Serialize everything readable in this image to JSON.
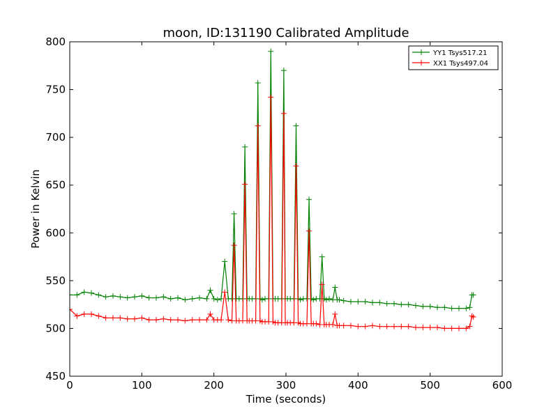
{
  "chart_data": {
    "type": "line",
    "title": "moon, ID:131190 Calibrated Amplitude",
    "xlabel": "Time (seconds)",
    "ylabel": "Power in Kelvin",
    "xlim": [
      0,
      600
    ],
    "ylim": [
      450,
      800
    ],
    "xticks": [
      0,
      100,
      200,
      300,
      400,
      500,
      600
    ],
    "yticks": [
      450,
      500,
      550,
      600,
      650,
      700,
      750,
      800
    ],
    "grid": false,
    "legend_position": "top-right",
    "marker": "+",
    "series": [
      {
        "name": "YY1 Tsys517.21",
        "color": "#008000",
        "x": [
          0,
          10,
          20,
          30,
          40,
          50,
          60,
          70,
          80,
          90,
          100,
          110,
          120,
          130,
          140,
          150,
          160,
          170,
          180,
          190,
          195,
          200,
          205,
          210,
          215,
          220,
          225,
          228,
          231,
          235,
          240,
          243,
          246,
          249,
          253,
          258,
          261,
          264,
          267,
          271,
          276,
          279,
          282,
          285,
          289,
          294,
          297,
          299,
          302,
          306,
          311,
          314,
          317,
          320,
          324,
          329,
          332,
          335,
          338,
          342,
          347,
          350,
          353,
          356,
          360,
          365,
          368,
          371,
          374,
          380,
          390,
          400,
          410,
          420,
          430,
          440,
          450,
          460,
          470,
          480,
          490,
          500,
          510,
          520,
          530,
          540,
          550,
          555,
          558,
          560
        ],
        "y": [
          535,
          535,
          538,
          537,
          535,
          533,
          534,
          533,
          532,
          533,
          534,
          532,
          532,
          533,
          531,
          532,
          530,
          531,
          532,
          531,
          540,
          531,
          530,
          531,
          570,
          531,
          531,
          620,
          531,
          531,
          531,
          690,
          531,
          531,
          531,
          531,
          757,
          531,
          530,
          531,
          531,
          790,
          531,
          531,
          531,
          531,
          770,
          531,
          531,
          531,
          531,
          712,
          531,
          530,
          531,
          531,
          635,
          531,
          530,
          531,
          531,
          575,
          531,
          530,
          531,
          530,
          543,
          530,
          530,
          529,
          528,
          528,
          528,
          527,
          527,
          526,
          526,
          525,
          525,
          524,
          523,
          523,
          522,
          522,
          521,
          521,
          521,
          522,
          535,
          535
        ]
      },
      {
        "name": "XX1 Tsys497.04",
        "color": "#ff0000",
        "x": [
          0,
          10,
          20,
          30,
          40,
          50,
          60,
          70,
          80,
          90,
          100,
          110,
          120,
          130,
          140,
          150,
          160,
          170,
          180,
          190,
          195,
          200,
          205,
          210,
          215,
          220,
          225,
          228,
          231,
          235,
          240,
          243,
          246,
          249,
          253,
          258,
          261,
          264,
          267,
          271,
          276,
          279,
          282,
          285,
          289,
          294,
          297,
          299,
          302,
          306,
          311,
          314,
          317,
          320,
          324,
          329,
          332,
          335,
          338,
          342,
          347,
          350,
          353,
          356,
          360,
          365,
          368,
          371,
          374,
          380,
          390,
          400,
          410,
          420,
          430,
          440,
          450,
          460,
          470,
          480,
          490,
          500,
          510,
          520,
          530,
          540,
          550,
          555,
          558,
          560
        ],
        "y": [
          520,
          513,
          515,
          515,
          513,
          511,
          511,
          511,
          510,
          510,
          511,
          509,
          509,
          510,
          509,
          509,
          508,
          509,
          509,
          509,
          515,
          509,
          509,
          509,
          538,
          509,
          508,
          587,
          508,
          508,
          508,
          651,
          508,
          508,
          508,
          508,
          712,
          508,
          507,
          507,
          507,
          742,
          507,
          506,
          506,
          506,
          725,
          506,
          506,
          506,
          506,
          670,
          506,
          505,
          505,
          505,
          602,
          505,
          505,
          505,
          504,
          546,
          504,
          504,
          504,
          504,
          515,
          503,
          503,
          503,
          503,
          502,
          502,
          503,
          502,
          502,
          502,
          502,
          502,
          501,
          501,
          501,
          501,
          500,
          500,
          500,
          500,
          502,
          513,
          512
        ]
      }
    ]
  }
}
